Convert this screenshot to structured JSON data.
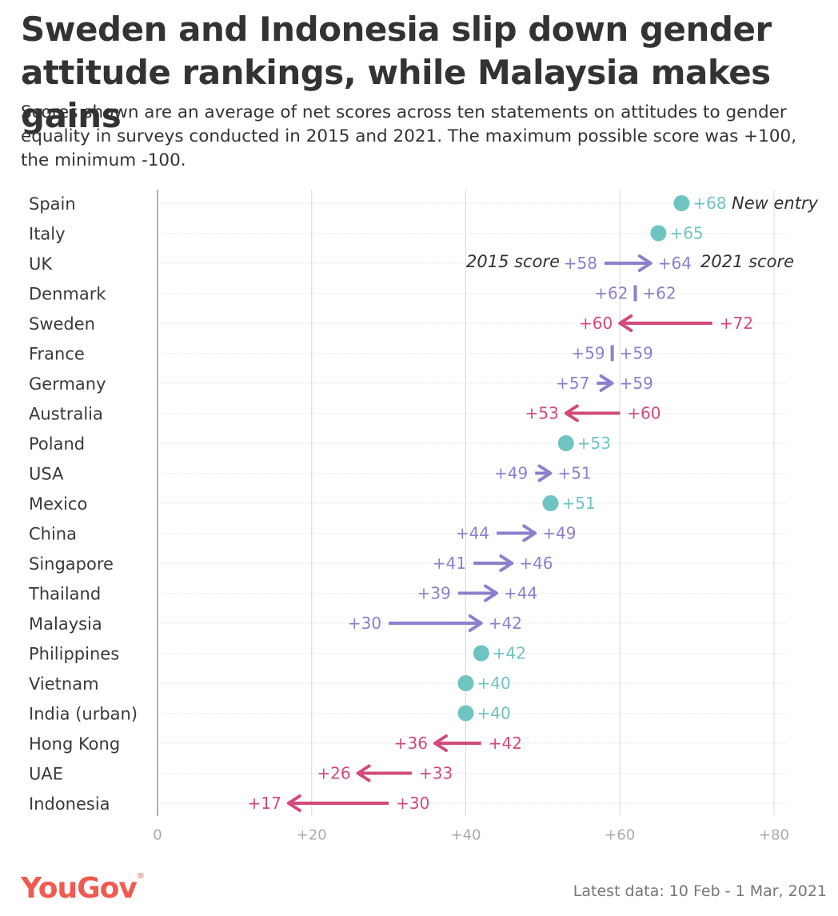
{
  "header": {
    "title": "Sweden and Indonesia slip down gender attitude rankings, while Malaysia makes gains",
    "subtitle": "Scores shown are an average of net scores across ten statements on attitudes to gender equality in surveys conducted in 2015 and 2021. The maximum possible score was +100, the minimum -100."
  },
  "footer": {
    "logo": "YouGov",
    "note": "Latest data: 10 Feb - 1 Mar, 2021"
  },
  "colors": {
    "rise": "#8b80cc",
    "fall": "#d14b78",
    "new": "#6fc4c1",
    "axis": "#999999",
    "grid": "#d8d8d8",
    "text": "#3a3a3a",
    "annotation": "#333333"
  },
  "chart_data": {
    "type": "dumbbell-arrow",
    "title": "Sweden and Indonesia slip down gender attitude rankings, while Malaysia makes gains",
    "xlim": [
      0,
      80
    ],
    "xticks": [
      0,
      20,
      40,
      60,
      80
    ],
    "xtick_labels": [
      "0",
      "+20",
      "+40",
      "+60",
      "+80"
    ],
    "series_names": [
      "2015 score",
      "2021 score"
    ],
    "rows": [
      {
        "country": "Spain",
        "score_2015": null,
        "score_2021": 68,
        "label_2015": "",
        "label_2021": "+68",
        "status": "new"
      },
      {
        "country": "Italy",
        "score_2015": null,
        "score_2021": 65,
        "label_2015": "",
        "label_2021": "+65",
        "status": "new"
      },
      {
        "country": "UK",
        "score_2015": 58,
        "score_2021": 64,
        "label_2015": "+58",
        "label_2021": "+64",
        "status": "rise"
      },
      {
        "country": "Denmark",
        "score_2015": 62,
        "score_2021": 62,
        "label_2015": "+62",
        "label_2021": "+62",
        "status": "same"
      },
      {
        "country": "Sweden",
        "score_2015": 72,
        "score_2021": 60,
        "label_2015": "+72",
        "label_2021": "+60",
        "status": "fall"
      },
      {
        "country": "France",
        "score_2015": 59,
        "score_2021": 59,
        "label_2015": "+59",
        "label_2021": "+59",
        "status": "same"
      },
      {
        "country": "Germany",
        "score_2015": 57,
        "score_2021": 59,
        "label_2015": "+57",
        "label_2021": "+59",
        "status": "rise"
      },
      {
        "country": "Australia",
        "score_2015": 60,
        "score_2021": 53,
        "label_2015": "+60",
        "label_2021": "+53",
        "status": "fall"
      },
      {
        "country": "Poland",
        "score_2015": null,
        "score_2021": 53,
        "label_2015": "",
        "label_2021": "+53",
        "status": "new"
      },
      {
        "country": "USA",
        "score_2015": 49,
        "score_2021": 51,
        "label_2015": "+49",
        "label_2021": "+51",
        "status": "rise"
      },
      {
        "country": "Mexico",
        "score_2015": null,
        "score_2021": 51,
        "label_2015": "",
        "label_2021": "+51",
        "status": "new"
      },
      {
        "country": "China",
        "score_2015": 44,
        "score_2021": 49,
        "label_2015": "+44",
        "label_2021": "+49",
        "status": "rise"
      },
      {
        "country": "Singapore",
        "score_2015": 41,
        "score_2021": 46,
        "label_2015": "+41",
        "label_2021": "+46",
        "status": "rise"
      },
      {
        "country": "Thailand",
        "score_2015": 39,
        "score_2021": 44,
        "label_2015": "+39",
        "label_2021": "+44",
        "status": "rise"
      },
      {
        "country": "Malaysia",
        "score_2015": 30,
        "score_2021": 42,
        "label_2015": "+30",
        "label_2021": "+42",
        "status": "rise"
      },
      {
        "country": "Philippines",
        "score_2015": null,
        "score_2021": 42,
        "label_2015": "",
        "label_2021": "+42",
        "status": "new"
      },
      {
        "country": "Vietnam",
        "score_2015": null,
        "score_2021": 40,
        "label_2015": "",
        "label_2021": "+40",
        "status": "new"
      },
      {
        "country": "India (urban)",
        "score_2015": null,
        "score_2021": 40,
        "label_2015": "",
        "label_2021": "+40",
        "status": "new"
      },
      {
        "country": "Hong Kong",
        "score_2015": 42,
        "score_2021": 36,
        "label_2015": "+42",
        "label_2021": "+36",
        "status": "fall"
      },
      {
        "country": "UAE",
        "score_2015": 33,
        "score_2021": 26,
        "label_2015": "+33",
        "label_2021": "+26",
        "status": "fall"
      },
      {
        "country": "Indonesia",
        "score_2015": 30,
        "score_2021": 17,
        "label_2015": "+30",
        "label_2021": "+17",
        "status": "fall"
      }
    ],
    "annotations": {
      "new_entry": {
        "text": "New entry",
        "row": "Spain"
      },
      "label_2015": {
        "text": "2015 score",
        "row": "UK"
      },
      "label_2021": {
        "text": "2021 score",
        "row": "UK"
      }
    }
  }
}
